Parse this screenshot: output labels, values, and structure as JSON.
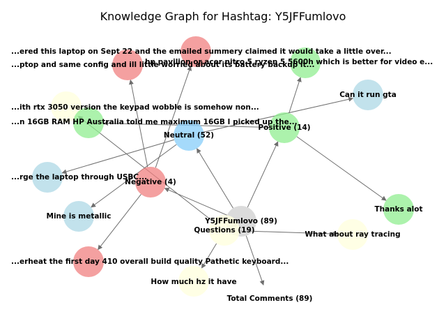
{
  "title": "Knowledge Graph for Hashtag: Y5JFFumlovo",
  "colors": {
    "root": "#cfcfcf",
    "sentiment_neutral": "#87cefa",
    "sentiment_positive": "#90ee90",
    "sentiment_negative": "#f08080",
    "comment_neutral": "#add8e6",
    "comment_positive": "#90ee90",
    "comment_negative": "#f08080",
    "question": "#ffffe0",
    "edge": "#6e6e6e"
  },
  "nodes": [
    {
      "id": "root",
      "label": "Y5JFFumlovo (89)",
      "kind": "root"
    },
    {
      "id": "total",
      "label": "Total Comments (89)",
      "kind": "text"
    },
    {
      "id": "neutral",
      "label": "Neutral (52)",
      "kind": "sentiment_neutral"
    },
    {
      "id": "positive",
      "label": "Positive (14)",
      "kind": "sentiment_positive"
    },
    {
      "id": "negative",
      "label": "Negative (4)",
      "kind": "sentiment_negative"
    },
    {
      "id": "questions",
      "label": "Questions (19)",
      "kind": "question"
    },
    {
      "id": "c_order",
      "label": "...ered this laptop on Sept 22 and the emailed summery claimed it would take a little over...",
      "kind": "comment_negative"
    },
    {
      "id": "c_config",
      "label": "...ptop and same config and ill little worried about its battery backup it...",
      "kind": "comment_negative"
    },
    {
      "id": "c_hp",
      "label": "hp pavilion or acer nitro 5 ryzen 5 5600h which is better for video e...",
      "kind": "comment_negative"
    },
    {
      "id": "c_pos_top",
      "label": "",
      "kind": "comment_positive"
    },
    {
      "id": "c_gta",
      "label": "Can it run gta",
      "kind": "comment_neutral"
    },
    {
      "id": "c_rtx",
      "label": "...ith rtx 3050 version the keypad wobble is somehow non...",
      "kind": "question"
    },
    {
      "id": "c_16gb",
      "label": "...n 16GB RAM HP Australia told me maximum 16GB I picked up the...",
      "kind": "comment_positive"
    },
    {
      "id": "c_usbc",
      "label": "...rge the laptop through USBC...",
      "kind": "comment_neutral"
    },
    {
      "id": "c_metal",
      "label": "Mine is metallic",
      "kind": "comment_neutral"
    },
    {
      "id": "c_thanks",
      "label": "Thanks alot",
      "kind": "comment_positive"
    },
    {
      "id": "c_ray",
      "label": "What about ray tracing",
      "kind": "question"
    },
    {
      "id": "c_overheat",
      "label": "...erheat the first day 410 overall build quality Pathetic keyboard...",
      "kind": "comment_negative"
    },
    {
      "id": "c_hz",
      "label": "How much hz it have",
      "kind": "question"
    }
  ],
  "edges": [
    {
      "from": "root",
      "to": "neutral"
    },
    {
      "from": "root",
      "to": "positive"
    },
    {
      "from": "root",
      "to": "negative"
    },
    {
      "from": "root",
      "to": "questions"
    },
    {
      "from": "root",
      "to": "total"
    },
    {
      "from": "negative",
      "to": "c_order"
    },
    {
      "from": "negative",
      "to": "c_config"
    },
    {
      "from": "negative",
      "to": "c_overheat"
    },
    {
      "from": "positive",
      "to": "c_pos_top"
    },
    {
      "from": "positive",
      "to": "c_thanks"
    },
    {
      "from": "positive",
      "to": "c_16gb"
    },
    {
      "from": "neutral",
      "to": "c_gta"
    },
    {
      "from": "neutral",
      "to": "c_usbc"
    },
    {
      "from": "neutral",
      "to": "c_metal"
    },
    {
      "from": "questions",
      "to": "c_rtx"
    },
    {
      "from": "questions",
      "to": "c_ray"
    },
    {
      "from": "questions",
      "to": "c_hz"
    }
  ]
}
